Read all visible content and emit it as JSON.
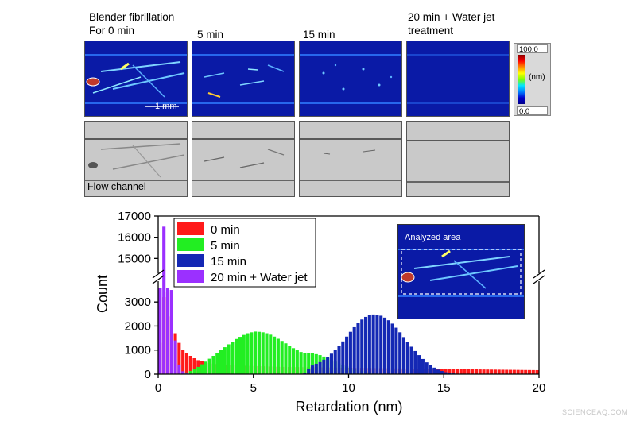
{
  "panels": {
    "top_labels": [
      "Blender fibrillation\nFor 0 min",
      "5 min",
      "15 min",
      "20 min + Water jet\ntreatment"
    ],
    "scale_bar": "1 mm",
    "flow_channel_label": "Flow channel",
    "colorbar": {
      "max": "100.0",
      "min": "0.0",
      "unit": "(nm)"
    }
  },
  "inset": {
    "title": "Analyzed area"
  },
  "watermark": "SCIENCEAQ.COM",
  "colors": {
    "c0": "#ff1a1a",
    "c5": "#22ee22",
    "c15": "#1428b4",
    "cjet": "#9b30ff",
    "false_color_bg": "#0a1aa6"
  },
  "chart_data": {
    "type": "bar",
    "xlabel": "Retardation (nm)",
    "ylabel": "Count",
    "xlim": [
      0,
      20
    ],
    "y_break": {
      "lower": [
        0,
        3600
      ],
      "upper": [
        14600,
        17000
      ]
    },
    "x_ticks": [
      "0",
      "5",
      "10",
      "15",
      "20"
    ],
    "y_ticks_lower": [
      "0",
      "1000",
      "2000",
      "3000"
    ],
    "y_ticks_upper": [
      "15000",
      "16000",
      "17000"
    ],
    "legend_position": "top-left",
    "series": [
      {
        "name": "0 min",
        "color": "#ff1a1a",
        "bin_width": 0.2,
        "values": [
          1300,
          3200,
          3400,
          2400,
          1700,
          1300,
          1000,
          870,
          760,
          660,
          580,
          530,
          490,
          460,
          440,
          420,
          400,
          390,
          380,
          370,
          360,
          355,
          350,
          345,
          340,
          335,
          330,
          325,
          320,
          315,
          310,
          305,
          300,
          298,
          296,
          294,
          292,
          290,
          288,
          286,
          284,
          282,
          280,
          278,
          276,
          274,
          272,
          270,
          268,
          266,
          264,
          262,
          260,
          258,
          256,
          254,
          252,
          250,
          248,
          246,
          244,
          242,
          240,
          238,
          236,
          234,
          232,
          230,
          228,
          226,
          224,
          222,
          220,
          218,
          216,
          214,
          212,
          210,
          208,
          206,
          204,
          202,
          200,
          198,
          196,
          194,
          192,
          190,
          188,
          186,
          184,
          182,
          180,
          178,
          176,
          174,
          172,
          170,
          168,
          166
        ]
      },
      {
        "name": "5 min",
        "color": "#22ee22",
        "bin_width": 0.2,
        "values": [
          0,
          0,
          0,
          0,
          0,
          10,
          30,
          70,
          130,
          210,
          300,
          410,
          520,
          640,
          760,
          880,
          1000,
          1120,
          1240,
          1350,
          1460,
          1550,
          1630,
          1700,
          1740,
          1770,
          1760,
          1740,
          1700,
          1640,
          1560,
          1470,
          1380,
          1280,
          1180,
          1080,
          990,
          920,
          880,
          870,
          860,
          830,
          790,
          730,
          660,
          590,
          520,
          450,
          380,
          320,
          270,
          220,
          180,
          140,
          110,
          80,
          60,
          40,
          25,
          15,
          5,
          0,
          0,
          0,
          0,
          0,
          0,
          0,
          0,
          0,
          0,
          0,
          0,
          0,
          0,
          0,
          0,
          0,
          0,
          0,
          0,
          0,
          0,
          0,
          0,
          0,
          0,
          0,
          0,
          0,
          0,
          0,
          0,
          0,
          0,
          0,
          0,
          0,
          0,
          0
        ]
      },
      {
        "name": "15 min",
        "color": "#1428b4",
        "bin_width": 0.2,
        "values": [
          0,
          0,
          0,
          0,
          0,
          0,
          0,
          0,
          0,
          0,
          0,
          0,
          0,
          0,
          0,
          0,
          0,
          0,
          0,
          0,
          0,
          0,
          0,
          0,
          0,
          0,
          0,
          0,
          0,
          0,
          0,
          0,
          0,
          0,
          0,
          0,
          0,
          0,
          50,
          200,
          360,
          430,
          500,
          600,
          720,
          850,
          1000,
          1170,
          1360,
          1560,
          1760,
          1950,
          2120,
          2270,
          2380,
          2450,
          2480,
          2470,
          2430,
          2350,
          2240,
          2100,
          1930,
          1740,
          1540,
          1340,
          1140,
          960,
          790,
          630,
          490,
          370,
          270,
          190,
          130,
          80,
          50,
          30,
          15,
          5,
          0,
          0,
          0,
          0,
          0,
          0,
          0,
          0,
          0,
          0,
          0,
          0,
          0,
          0,
          0,
          0,
          0,
          0,
          0,
          0
        ]
      },
      {
        "name": "20 min + Water jet",
        "color": "#9b30ff",
        "bin_width": 0.2,
        "values": [
          6500,
          16500,
          3600,
          3500,
          1400,
          400,
          120,
          30,
          10,
          0,
          0,
          0,
          0,
          0,
          0,
          0,
          0,
          0,
          0,
          0,
          0,
          0,
          0,
          0,
          0,
          0,
          0,
          0,
          0,
          0,
          0,
          0,
          0,
          0,
          0,
          0,
          0,
          0,
          0,
          0,
          0,
          0,
          0,
          0,
          0,
          0,
          0,
          0,
          0,
          0,
          0,
          0,
          0,
          0,
          0,
          0,
          0,
          0,
          0,
          0,
          0,
          0,
          0,
          0,
          0,
          0,
          0,
          0,
          0,
          0,
          0,
          0,
          0,
          0,
          0,
          0,
          0,
          0,
          0,
          0,
          0,
          0,
          0,
          0,
          0,
          0,
          0,
          0,
          0,
          0,
          0,
          0,
          0,
          0,
          0,
          0,
          0,
          0,
          0,
          0
        ]
      }
    ]
  }
}
